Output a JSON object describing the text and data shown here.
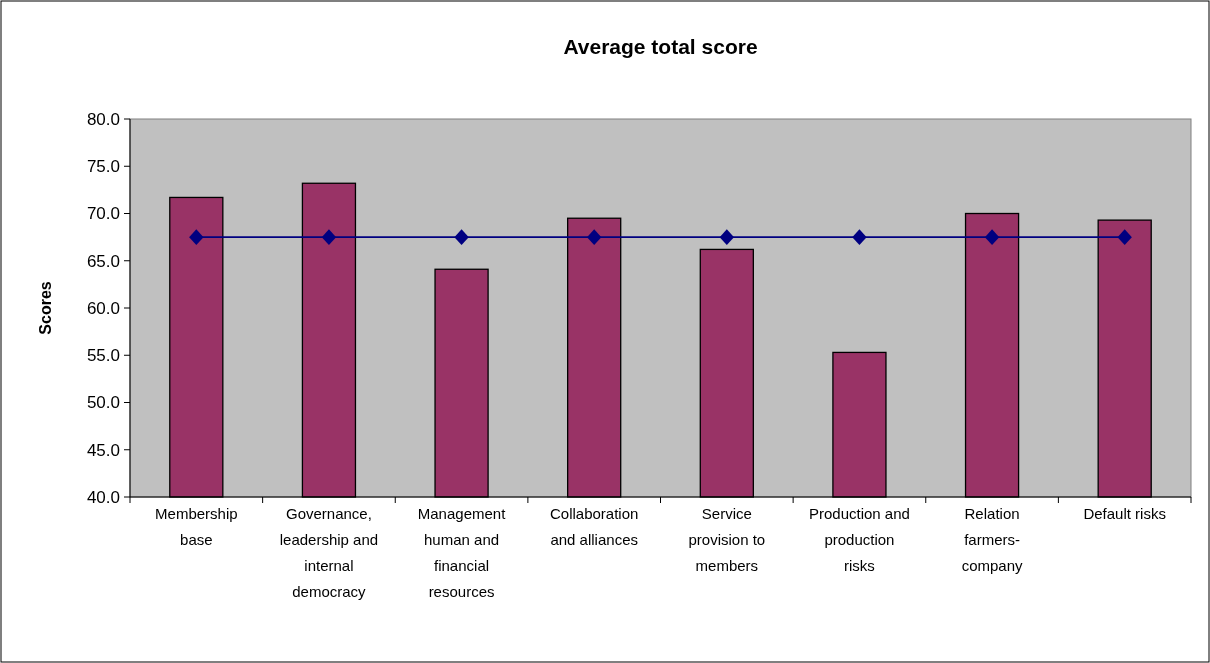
{
  "chart_data": {
    "type": "bar",
    "title": "Average total score",
    "ylabel": "Scores",
    "categories": [
      "Membership base",
      "Governance, leadership and internal democracy",
      "Management human and financial resources",
      "Collaboration and alliances",
      "Service provision to members",
      "Production and production risks",
      "Relation farmers-company",
      "Default risks"
    ],
    "series": [
      {
        "color": "#993366",
        "values": [
          71.7,
          73.2,
          64.1,
          69.5,
          66.2,
          55.3,
          70.0,
          69.3
        ]
      },
      {
        "type": "line",
        "color": "#000080",
        "marker": "diamond",
        "values": [
          67.5,
          67.5,
          67.5,
          67.5,
          67.5,
          67.5,
          67.5,
          67.5
        ]
      }
    ],
    "ylim": [
      40,
      80
    ],
    "yticks": [
      {
        "value": 40,
        "label": "40.0"
      },
      {
        "value": 45,
        "label": "45.0"
      },
      {
        "value": 50,
        "label": "50.0"
      },
      {
        "value": 55,
        "label": "55.0"
      },
      {
        "value": 60,
        "label": "60.0"
      },
      {
        "value": 65,
        "label": "65.0"
      },
      {
        "value": 70,
        "label": "70.0"
      },
      {
        "value": 75,
        "label": "75.0"
      },
      {
        "value": 80,
        "label": "80.0"
      }
    ],
    "grid": false
  }
}
